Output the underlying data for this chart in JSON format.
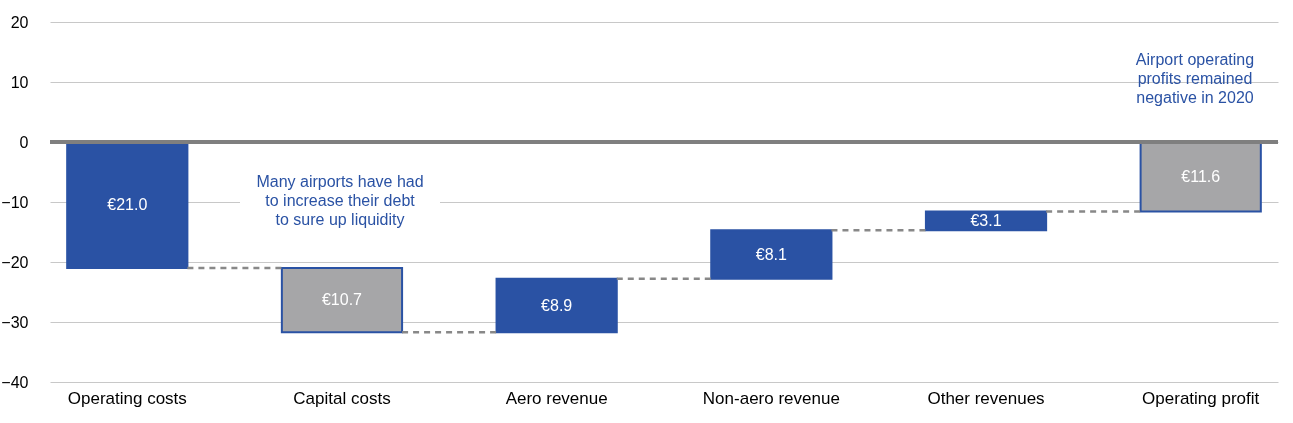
{
  "chart_data": {
    "type": "bar",
    "categories": [
      "Operating costs",
      "Capital costs",
      "Aero revenue",
      "Non-aero revenue",
      "Other revenues",
      "Operating profit"
    ],
    "values": [
      -21.0,
      -10.7,
      8.9,
      8.1,
      3.1,
      -11.6
    ],
    "base": [
      0,
      -21.0,
      -31.7,
      -22.8,
      -14.7,
      0
    ],
    "colors": [
      "#2a52a4",
      "#a6a6a8",
      "#2a52a4",
      "#2a52a4",
      "#2a52a4",
      "#a6a6a8"
    ],
    "value_labels": [
      "€21.0",
      "€10.7",
      "€8.9",
      "€8.1",
      "€3.1",
      "€11.6"
    ],
    "ylim": [
      -40,
      20
    ],
    "yticks": [
      -40,
      -30,
      -20,
      -10,
      0,
      10,
      20
    ],
    "grid": "y",
    "ref_lines": [
      {
        "axis": "y",
        "value": 0,
        "color": "#7f7f7f"
      }
    ],
    "annotations": [
      "Many airports have had to increase their debt to sure up liquidity",
      "Airport operating profits remained negative in 2020"
    ]
  }
}
